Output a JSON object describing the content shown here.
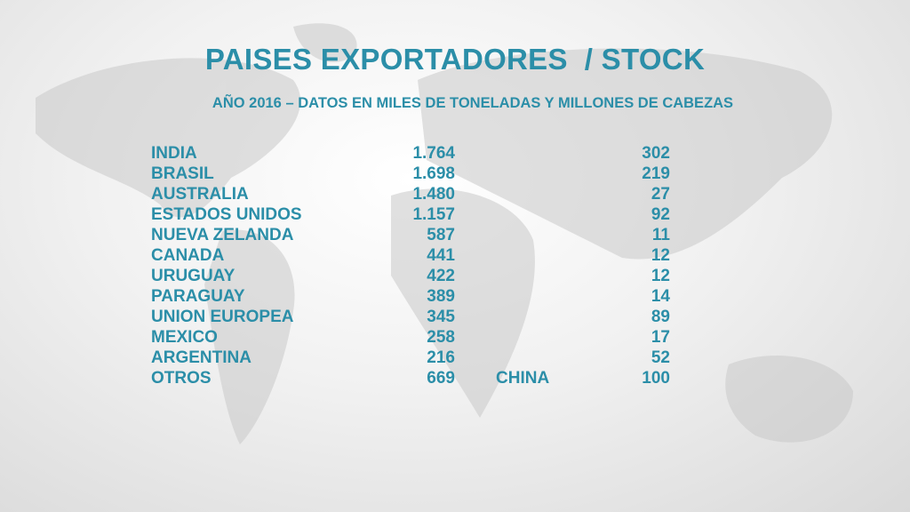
{
  "header": {
    "title": "PAISES EXPORTADORES  / STOCK",
    "subtitle": "AÑO 2016 – DATOS EN MILES DE TONELADAS Y MILLONES DE CABEZAS"
  },
  "table": {
    "rows": [
      {
        "country": "INDIA",
        "exports": "1.764",
        "stock": "302"
      },
      {
        "country": "BRASIL",
        "exports": "1.698",
        "stock": "219"
      },
      {
        "country": "AUSTRALIA",
        "exports": "1.480",
        "stock": "27"
      },
      {
        "country": "ESTADOS UNIDOS",
        "exports": "1.157",
        "stock": "92"
      },
      {
        "country": "NUEVA ZELANDA",
        "exports": "587",
        "stock": "11"
      },
      {
        "country": "CANADA",
        "exports": "441",
        "stock": "12"
      },
      {
        "country": "URUGUAY",
        "exports": "422",
        "stock": "12"
      },
      {
        "country": "PARAGUAY",
        "exports": "389",
        "stock": "14"
      },
      {
        "country": "UNION EUROPEA",
        "exports": "345",
        "stock": "89"
      },
      {
        "country": "MEXICO",
        "exports": "258",
        "stock": "17"
      },
      {
        "country": "ARGENTINA",
        "exports": "216",
        "stock": "52"
      },
      {
        "country": "OTROS",
        "exports": "669",
        "note": "CHINA",
        "stock": "100"
      }
    ]
  }
}
